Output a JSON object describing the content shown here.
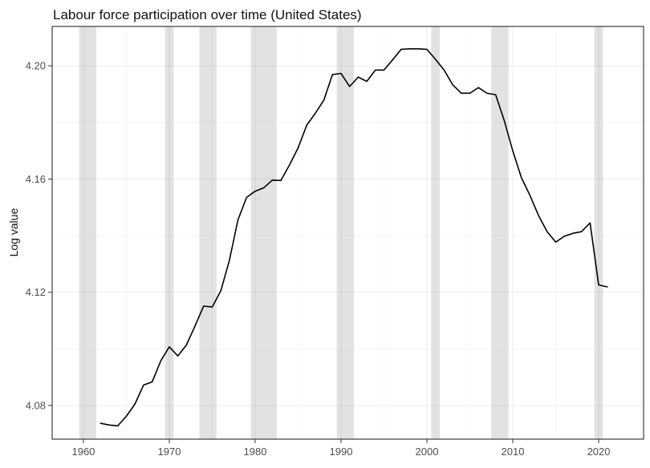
{
  "header": {
    "title": "Labour force participation over time (United States)"
  },
  "chart_data": {
    "type": "line",
    "title": "Labour force participation over time (United States)",
    "xlabel": "",
    "ylabel": "Log value",
    "legend": "none",
    "grid": "major+minor",
    "xlim": [
      1956.36,
      2025.23
    ],
    "ylim": [
      4.0681,
      4.2139
    ],
    "x_ticks": [
      1960,
      1970,
      1980,
      1990,
      2000,
      2010,
      2020
    ],
    "x_tick_labels": [
      "1960",
      "1970",
      "1980",
      "1990",
      "2000",
      "2010",
      "2020"
    ],
    "x_minor_ticks": [
      1965,
      1975,
      1985,
      1995,
      2005,
      2015,
      2025
    ],
    "y_ticks": [
      4.08,
      4.12,
      4.16,
      4.2
    ],
    "y_tick_labels": [
      "4.08",
      "4.12",
      "4.16",
      "4.20"
    ],
    "y_minor_ticks": [
      4.1,
      4.14,
      4.18
    ],
    "recession_bands": [
      [
        1959.5,
        1961.5
      ],
      [
        1969.5,
        1970.5
      ],
      [
        1973.5,
        1975.5
      ],
      [
        1979.5,
        1982.5
      ],
      [
        1989.5,
        1991.5
      ],
      [
        2000.5,
        2001.5
      ],
      [
        2007.5,
        2009.5
      ],
      [
        2019.5,
        2020.5
      ]
    ],
    "series": [
      {
        "name": "United States",
        "x": [
          1962,
          1963,
          1964,
          1965,
          1966,
          1967,
          1968,
          1969,
          1970,
          1971,
          1972,
          1973,
          1974,
          1975,
          1976,
          1977,
          1978,
          1979,
          1980,
          1981,
          1982,
          1983,
          1984,
          1985,
          1986,
          1987,
          1988,
          1989,
          1990,
          1991,
          1992,
          1993,
          1994,
          1995,
          1996,
          1997,
          1998,
          1999,
          2000,
          2001,
          2002,
          2003,
          2004,
          2005,
          2006,
          2007,
          2008,
          2009,
          2010,
          2011,
          2012,
          2013,
          2014,
          2015,
          2016,
          2017,
          2018,
          2019,
          2020,
          2021
        ],
        "y": [
          4.0737,
          4.0731,
          4.0728,
          4.0762,
          4.0805,
          4.0872,
          4.0883,
          4.0957,
          4.1007,
          4.0975,
          4.1014,
          4.1081,
          4.1151,
          4.1148,
          4.1205,
          4.1313,
          4.1456,
          4.1535,
          4.1557,
          4.1569,
          4.1596,
          4.1595,
          4.165,
          4.171,
          4.179,
          4.1832,
          4.1879,
          4.1969,
          4.1973,
          4.1927,
          4.196,
          4.1945,
          4.1985,
          4.1985,
          4.2021,
          4.2058,
          4.206,
          4.206,
          4.2058,
          4.2023,
          4.1985,
          4.1933,
          4.1903,
          4.1903,
          4.1923,
          4.1903,
          4.1898,
          4.1807,
          4.1699,
          4.1605,
          4.1542,
          4.1471,
          4.1414,
          4.1377,
          4.1398,
          4.1408,
          4.1414,
          4.1445,
          4.1226,
          4.1219
        ]
      }
    ],
    "colors": {
      "line": "#000000",
      "recession_band": "#e2e2e2",
      "grid_major": "rgba(0,0,0,0.075)",
      "grid_minor": "rgba(0,0,0,0.04)",
      "panel_border": "#3c3c3c",
      "tick_mark": "#333333",
      "tick_label": "#4d4d4d",
      "title": "#111111",
      "background": "#ffffff"
    }
  }
}
